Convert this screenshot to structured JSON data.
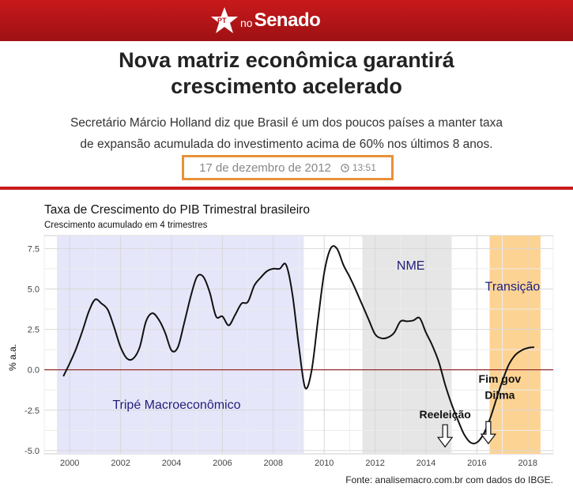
{
  "header": {
    "logo_pt": "PT",
    "logo_no": "no",
    "logo_senado": "Senado",
    "bar_color": "#b3151a"
  },
  "article": {
    "headline_line1": "Nova matriz econômica garantirá",
    "headline_line2": "crescimento acelerado",
    "subtitle_line1": "Secretário Márcio Holland diz que Brasil é um dos poucos países a manter taxa",
    "subtitle_line2": "de expansão acumulada do investimento acima de 60% nos últimos 8 anos.",
    "date": "17 de dezembro de 2012",
    "time": "13:51"
  },
  "chart_data": {
    "type": "line",
    "title": "Taxa de Crescimento do PIB Trimestral brasileiro",
    "subtitle": "Crescimento acumulado em 4 trimestres",
    "ylabel": "% a.a.",
    "xlabel": "",
    "xlim": [
      1999.0,
      2019.0
    ],
    "ylim": [
      -5.2,
      8.3
    ],
    "xticks": [
      2000,
      2002,
      2004,
      2006,
      2008,
      2010,
      2012,
      2014,
      2016,
      2018
    ],
    "xtick_labels": [
      "2000",
      "2002",
      "2004",
      "2006",
      "2008",
      "2010",
      "2012",
      "2014",
      "2016",
      "2018"
    ],
    "yticks": [
      -5.0,
      -2.5,
      0.0,
      2.5,
      5.0,
      7.5
    ],
    "ytick_labels": [
      "-5.0",
      "-2.5",
      "0.0",
      "2.5",
      "5.0",
      "7.5"
    ],
    "grid": true,
    "series": [
      {
        "color": "#111111",
        "x": [
          1999.75,
          2000.0,
          2000.25,
          2000.5,
          2000.75,
          2001.0,
          2001.25,
          2001.5,
          2001.75,
          2002.0,
          2002.25,
          2002.5,
          2002.75,
          2003.0,
          2003.25,
          2003.5,
          2003.75,
          2004.0,
          2004.25,
          2004.5,
          2004.75,
          2005.0,
          2005.25,
          2005.5,
          2005.75,
          2006.0,
          2006.25,
          2006.5,
          2006.75,
          2007.0,
          2007.25,
          2007.5,
          2007.75,
          2008.0,
          2008.25,
          2008.5,
          2008.75,
          2009.0,
          2009.25,
          2009.5,
          2009.75,
          2010.0,
          2010.25,
          2010.5,
          2010.75,
          2011.0,
          2011.25,
          2011.5,
          2011.75,
          2012.0,
          2012.25,
          2012.5,
          2012.75,
          2013.0,
          2013.25,
          2013.5,
          2013.75,
          2014.0,
          2014.25,
          2014.5,
          2014.75,
          2015.0,
          2015.25,
          2015.5,
          2015.75,
          2016.0,
          2016.25,
          2016.5,
          2016.75,
          2017.0,
          2017.25,
          2017.5,
          2017.75,
          2018.0,
          2018.25
        ],
        "y": [
          -0.4,
          0.4,
          1.3,
          2.4,
          3.6,
          4.35,
          4.1,
          3.7,
          2.6,
          1.4,
          0.7,
          0.7,
          1.4,
          3.0,
          3.5,
          3.1,
          2.3,
          1.2,
          1.4,
          2.9,
          4.5,
          5.75,
          5.75,
          4.8,
          3.3,
          3.3,
          2.75,
          3.4,
          4.1,
          4.2,
          5.2,
          5.7,
          6.1,
          6.25,
          6.25,
          6.5,
          4.7,
          1.5,
          -1.1,
          -0.1,
          3.0,
          6.0,
          7.5,
          7.5,
          6.5,
          5.75,
          4.9,
          4.0,
          3.1,
          2.2,
          1.95,
          2.0,
          2.3,
          3.0,
          3.0,
          3.05,
          3.2,
          2.3,
          1.5,
          0.5,
          -0.9,
          -2.1,
          -3.1,
          -4.0,
          -4.5,
          -4.5,
          -4.0,
          -3.1,
          -1.9,
          -0.7,
          0.3,
          0.9,
          1.2,
          1.35,
          1.4
        ]
      }
    ],
    "regions": [
      {
        "label": "Tripé Macroeconômico",
        "x0": 1999.5,
        "x1": 2009.2,
        "color": "#e6e6fa"
      },
      {
        "label": "NME",
        "x0": 2011.5,
        "x1": 2015.0,
        "color": "#e6e6e6"
      },
      {
        "label": "Transição",
        "x0": 2016.5,
        "x1": 2018.5,
        "color": "#fdd394"
      }
    ],
    "annotations": [
      {
        "text": "Reeleição",
        "x": 2014.75,
        "y": -3.0
      },
      {
        "text": "Fim gov",
        "x": 2016.9,
        "y": -0.8
      },
      {
        "text": "Dilma",
        "x": 2016.9,
        "y": -1.8
      }
    ],
    "source": "Fonte: analisemacro.com.br com dados do IBGE.",
    "zero_line_color": "#8b1a1a"
  }
}
